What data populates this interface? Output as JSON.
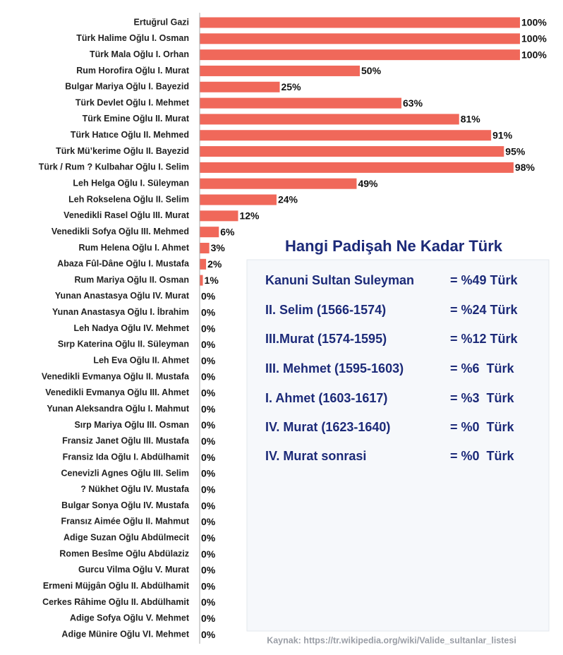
{
  "chart_data": {
    "type": "barh",
    "categories": [
      "Ertuğrul Gazi",
      "Türk Halime Oğlu I. Osman",
      "Türk Mala Oğlu I. Orhan",
      "Rum Horofira Oğlu I. Murat",
      "Bulgar Mariya Oğlu I. Bayezid",
      "Türk Devlet Oğlu I. Mehmet",
      "Türk Emine Oğlu II. Murat",
      "Türk Hatıce Oğlu II. Mehmed",
      "Türk Mü’kerime Oğlu II. Bayezid",
      "Türk / Rum ? Kulbahar Oğlu I. Selim",
      "Leh Helga Oğlu I. Süleyman",
      "Leh Rokselena Oğlu II. Selim",
      "Venedikli Rasel Oğlu III. Murat",
      "Venedikli Sofya Oğlu III. Mehmed",
      "Rum Helena Oğlu I. Ahmet",
      "Abaza Fûl-Dâne Oğlu I. Mustafa",
      "Rum Mariya Oğlu II. Osman",
      "Yunan Anastasya Oğlu IV. Murat",
      "Yunan Anastasya Oğlu I. İbrahim",
      "Leh Nadya Oğlu IV. Mehmet",
      "Sırp Katerina Oğlu II. Süleyman",
      "Leh Eva Oğlu II. Ahmet",
      "Venedikli Evmanya Oğlu II. Mustafa",
      "Venedikli Evmanya Oğlu III. Ahmet",
      "Yunan Aleksandra Oğlu I. Mahmut",
      "Sırp Mariya Oğlu III. Osman",
      "Fransiz Janet Oğlu III. Mustafa",
      "Fransiz Ida Oğlu I. Abdülhamit",
      "Cenevizli Agnes Oğlu III. Selim",
      "? Nükhet Oğlu IV. Mustafa",
      "Bulgar Sonya Oğlu IV. Mustafa",
      "Fransız Aimée Oğlu II. Mahmut",
      "Adige Suzan Oğlu Abdülmecit",
      "Romen Besîme Oğlu Abdülaziz",
      "Gurcu Vilma Oğlu V. Murat",
      "Ermeni Müjgân Oğlu II. Abdülhamit",
      "Cerkes Râhime Oğlu II. Abdülhamit",
      "Adige Sofya Oğlu V. Mehmet",
      "Adige Münire Oğlu VI. Mehmet"
    ],
    "values": [
      100,
      100,
      100,
      50,
      25,
      63,
      81,
      91,
      95,
      98,
      49,
      24,
      12,
      6,
      3,
      2,
      1,
      0,
      0,
      0,
      0,
      0,
      0,
      0,
      0,
      0,
      0,
      0,
      0,
      0,
      0,
      0,
      0,
      0,
      0,
      0,
      0,
      0,
      0
    ],
    "value_labels": [
      "100%",
      "100%",
      "100%",
      "50%",
      "25%",
      "63%",
      "81%",
      "91%",
      "95%",
      "98%",
      "49%",
      "24%",
      "12%",
      "6%",
      "3%",
      "2%",
      "1%",
      "0%",
      "0%",
      "0%",
      "0%",
      "0%",
      "0%",
      "0%",
      "0%",
      "0%",
      "0%",
      "0%",
      "0%",
      "0%",
      "0%",
      "0%",
      "0%",
      "0%",
      "0%",
      "0%",
      "0%",
      "0%",
      "0%"
    ],
    "color": "#f0685a",
    "inset": {
      "title": "Hangi Padişah Ne Kadar Türk",
      "rows": [
        [
          "Kanuni Sultan Suleyman",
          "= %49 Türk"
        ],
        [
          "II. Selim (1566-1574)",
          "= %24 Türk"
        ],
        [
          "III.Murat (1574-1595)",
          "= %12 Türk"
        ],
        [
          "III. Mehmet (1595-1603)",
          "= %6  Türk"
        ],
        [
          "I. Ahmet (1603-1617)",
          "= %3  Türk"
        ],
        [
          "IV. Murat (1623-1640)",
          "= %0  Türk"
        ],
        [
          "IV. Murat sonrasi",
          "= %0  Türk"
        ]
      ]
    },
    "source": "Kaynak: https://tr.wikipedia.org/wiki/Valide_sultanlar_listesi"
  }
}
